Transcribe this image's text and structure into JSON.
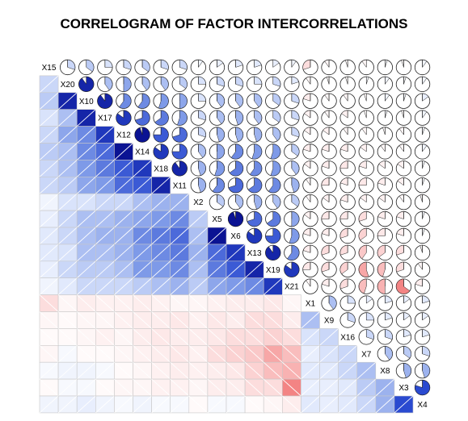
{
  "chart_data": {
    "type": "heatmap",
    "title": "CORRELOGRAM OF FACTOR INTERCORRELATIONS",
    "variables": [
      "X15",
      "X20",
      "X10",
      "X17",
      "X12",
      "X14",
      "X18",
      "X11",
      "X2",
      "X5",
      "X6",
      "X13",
      "X19",
      "X21",
      "X1",
      "X9",
      "X16",
      "X7",
      "X8",
      "X3",
      "X4"
    ],
    "value_range": [
      -1,
      1
    ],
    "lower_panel": "shade",
    "upper_panel": "pie",
    "colors": {
      "positive_light": "#d9e3fb",
      "positive_mid": "#7e9ae8",
      "positive_strong": "#2a4ad0",
      "positive_max": "#00007f",
      "negative_light": "#fde8e8",
      "negative_mid": "#f7a7a7",
      "negative_strong": "#ee5050",
      "negative_max": "#c81414"
    },
    "correlations": [
      [
        1,
        0.3,
        0.35,
        0.25,
        0.3,
        0.35,
        0.3,
        0.3,
        0.1,
        0.15,
        0.2,
        0.2,
        0.15,
        0.1,
        -0.3,
        -0.1,
        -0.05,
        -0.1,
        0.05,
        -0.05,
        0.1
      ],
      [
        0.3,
        1,
        0.9,
        0.4,
        0.5,
        0.4,
        0.4,
        0.35,
        0.25,
        0.3,
        0.3,
        0.25,
        0.3,
        0.2,
        -0.1,
        -0.05,
        -0.05,
        0.05,
        0.1,
        0.05,
        0.1
      ],
      [
        0.35,
        0.9,
        1,
        0.9,
        0.6,
        0.6,
        0.55,
        0.5,
        0.25,
        0.4,
        0.4,
        0.4,
        0.35,
        0.3,
        -0.2,
        -0.1,
        -0.1,
        -0.05,
        0.1,
        0.05,
        0.15
      ],
      [
        0.25,
        0.4,
        0.9,
        1,
        0.85,
        0.7,
        0.65,
        0.55,
        0.3,
        0.4,
        0.45,
        0.4,
        0.35,
        0.3,
        -0.15,
        -0.1,
        -0.15,
        -0.05,
        0.05,
        -0.05,
        0.1
      ],
      [
        0.3,
        0.5,
        0.6,
        0.85,
        1,
        0.95,
        0.75,
        0.7,
        0.3,
        0.45,
        0.45,
        0.45,
        0.4,
        0.3,
        -0.15,
        -0.15,
        -0.1,
        -0.1,
        -0.05,
        -0.1,
        0.05
      ],
      [
        0.35,
        0.4,
        0.6,
        0.7,
        0.95,
        1,
        0.85,
        0.75,
        0.4,
        0.5,
        0.6,
        0.55,
        0.55,
        0.35,
        -0.2,
        -0.2,
        -0.2,
        -0.15,
        -0.1,
        -0.1,
        0.1
      ],
      [
        0.3,
        0.4,
        0.55,
        0.65,
        0.75,
        0.85,
        1,
        0.9,
        0.45,
        0.55,
        0.65,
        0.6,
        0.55,
        0.4,
        -0.15,
        -0.2,
        -0.25,
        -0.2,
        -0.15,
        -0.15,
        0.05
      ],
      [
        0.3,
        0.35,
        0.5,
        0.55,
        0.7,
        0.75,
        0.9,
        1,
        0.45,
        0.6,
        0.7,
        0.65,
        0.6,
        0.45,
        -0.1,
        -0.25,
        -0.2,
        -0.25,
        -0.2,
        -0.15,
        0.05
      ],
      [
        0.1,
        0.25,
        0.25,
        0.3,
        0.3,
        0.4,
        0.45,
        0.45,
        1,
        0.35,
        0.4,
        0.45,
        0.4,
        0.35,
        -0.1,
        -0.15,
        -0.2,
        -0.15,
        -0.15,
        -0.1,
        -0.05
      ],
      [
        0.15,
        0.3,
        0.4,
        0.4,
        0.45,
        0.5,
        0.55,
        0.6,
        0.35,
        1,
        0.95,
        0.7,
        0.65,
        0.5,
        -0.15,
        -0.25,
        -0.25,
        -0.3,
        -0.2,
        -0.2,
        0.05
      ],
      [
        0.2,
        0.3,
        0.4,
        0.45,
        0.45,
        0.6,
        0.65,
        0.7,
        0.4,
        0.95,
        1,
        0.85,
        0.75,
        0.55,
        -0.2,
        -0.2,
        -0.3,
        -0.35,
        -0.25,
        -0.2,
        0.05
      ],
      [
        0.2,
        0.25,
        0.4,
        0.4,
        0.45,
        0.55,
        0.6,
        0.65,
        0.45,
        0.7,
        0.85,
        1,
        0.9,
        0.6,
        -0.2,
        -0.3,
        -0.3,
        -0.4,
        -0.35,
        -0.3,
        -0.05
      ],
      [
        0.15,
        0.3,
        0.35,
        0.35,
        0.4,
        0.55,
        0.55,
        0.6,
        0.4,
        0.65,
        0.75,
        0.9,
        1,
        0.85,
        -0.25,
        -0.3,
        -0.35,
        -0.55,
        -0.45,
        -0.3,
        -0.1
      ],
      [
        0.1,
        0.2,
        0.3,
        0.3,
        0.3,
        0.35,
        0.4,
        0.45,
        0.35,
        0.5,
        0.55,
        0.6,
        0.85,
        1,
        -0.1,
        -0.2,
        -0.3,
        -0.45,
        -0.5,
        -0.65,
        -0.2
      ],
      [
        -0.3,
        -0.1,
        -0.2,
        -0.15,
        -0.15,
        -0.2,
        -0.15,
        -0.1,
        -0.1,
        -0.15,
        -0.2,
        -0.2,
        -0.25,
        -0.1,
        1,
        0.4,
        0.25,
        0.15,
        0.2,
        0.15,
        0.2
      ],
      [
        -0.1,
        -0.05,
        -0.1,
        -0.1,
        -0.15,
        -0.2,
        -0.2,
        -0.25,
        -0.15,
        -0.25,
        -0.2,
        -0.3,
        -0.3,
        -0.2,
        0.4,
        1,
        0.3,
        0.25,
        0.2,
        0.15,
        0.15
      ],
      [
        -0.05,
        -0.05,
        -0.1,
        -0.15,
        -0.1,
        -0.2,
        -0.25,
        -0.2,
        -0.2,
        -0.25,
        -0.3,
        -0.3,
        -0.35,
        -0.3,
        0.25,
        0.3,
        1,
        0.3,
        0.3,
        0.2,
        0.2
      ],
      [
        -0.1,
        0.05,
        -0.05,
        -0.05,
        -0.1,
        -0.15,
        -0.2,
        -0.25,
        -0.15,
        -0.3,
        -0.35,
        -0.4,
        -0.55,
        -0.45,
        0.15,
        0.25,
        0.3,
        1,
        0.4,
        0.35,
        0.3
      ],
      [
        0.05,
        0.1,
        0.1,
        0.05,
        -0.05,
        -0.1,
        -0.15,
        -0.2,
        -0.15,
        -0.2,
        -0.25,
        -0.35,
        -0.45,
        -0.5,
        0.2,
        0.2,
        0.3,
        0.4,
        1,
        0.45,
        0.45
      ],
      [
        -0.05,
        0.05,
        0.05,
        -0.05,
        -0.1,
        -0.1,
        -0.15,
        -0.15,
        -0.1,
        -0.2,
        -0.2,
        -0.3,
        -0.3,
        -0.65,
        0.15,
        0.15,
        0.2,
        0.35,
        0.45,
        1,
        0.8
      ],
      [
        0.1,
        0.1,
        0.15,
        0.1,
        0.05,
        0.1,
        0.05,
        0.05,
        -0.05,
        0.05,
        0.05,
        -0.05,
        -0.1,
        -0.2,
        0.2,
        0.15,
        0.2,
        0.3,
        0.45,
        0.8,
        1
      ]
    ]
  }
}
